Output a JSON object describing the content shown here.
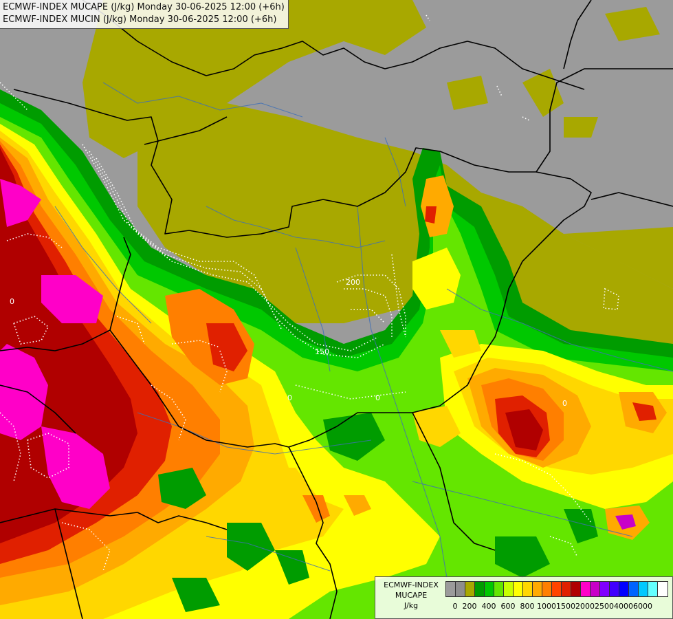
{
  "header": {
    "line1": "ECMWF-INDEX MUCAPE (J/kg) Monday 30-06-2025 12:00 (+6h)",
    "line2": "ECMWF-INDEX MUCIN (J/kg) Monday 30-06-2025 12:00 (+6h)"
  },
  "legend": {
    "title": "ECMWF-INDEX",
    "variable": "MUCAPE",
    "unit": "J/kg",
    "colors": [
      "#9b9b9b",
      "#8e8e8e",
      "#a8a800",
      "#009c00",
      "#00c800",
      "#64e600",
      "#c8ff00",
      "#ffff00",
      "#ffd700",
      "#ffaa00",
      "#ff7f00",
      "#ff4500",
      "#e02000",
      "#b00000",
      "#ff00c8",
      "#c800c8",
      "#8000ff",
      "#4000ff",
      "#0000ff",
      "#0064ff",
      "#00c8ff",
      "#64ffff",
      "#ffffff"
    ],
    "ticks": [
      {
        "label": "0",
        "index": 1
      },
      {
        "label": "200",
        "index": 2.5
      },
      {
        "label": "400",
        "index": 4.5
      },
      {
        "label": "600",
        "index": 6.5
      },
      {
        "label": "800",
        "index": 8.5
      },
      {
        "label": "1000",
        "index": 10.5
      },
      {
        "label": "1500",
        "index": 12.5
      },
      {
        "label": "2000",
        "index": 14.5
      },
      {
        "label": "2500",
        "index": 16.5
      },
      {
        "label": "4000",
        "index": 18.5
      },
      {
        "label": "6000",
        "index": 20.5
      }
    ]
  },
  "contour_labels": [
    "200",
    "150",
    "0",
    "0",
    "0",
    "0"
  ]
}
